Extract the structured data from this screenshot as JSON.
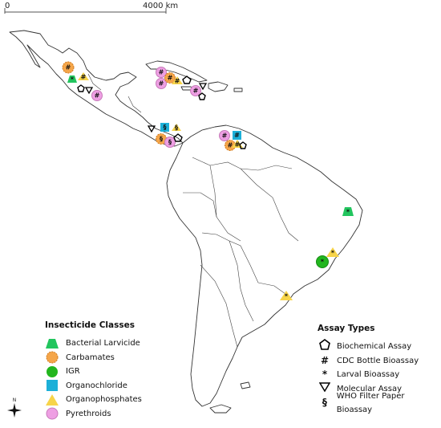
{
  "scale_bar": {
    "start_label": "0",
    "end_label": "4000 km"
  },
  "north_arrow": {
    "label": "N",
    "icon": "compass-star-icon"
  },
  "legend_classes": {
    "title": "Insecticide Classes",
    "items": [
      {
        "label": "Bacterial Larvicide",
        "shape": "trapezoid",
        "color": "#22c55e"
      },
      {
        "label": "Carbamates",
        "shape": "octagon",
        "color": "#f5a64a"
      },
      {
        "label": "IGR",
        "shape": "circle",
        "color": "#22b61e"
      },
      {
        "label": "Organochloride",
        "shape": "square",
        "color": "#1cb0d8"
      },
      {
        "label": "Organophosphates",
        "shape": "triangle",
        "color": "#f7d44a"
      },
      {
        "label": "Pyrethroids",
        "shape": "flower",
        "color": "#ee9fe3"
      }
    ]
  },
  "legend_assays": {
    "title": "Assay Types",
    "items": [
      {
        "label": "Biochemical Assay",
        "icon": "pentagon-icon",
        "glyph": ""
      },
      {
        "label": "CDC Bottle Bioassay",
        "icon": "hash-icon",
        "glyph": "#"
      },
      {
        "label": "Larval Bioassay",
        "icon": "asterisk-icon",
        "glyph": "*"
      },
      {
        "label": "Molecular Assay",
        "icon": "down-triangle-icon",
        "glyph": ""
      },
      {
        "label": "WHO Filter Paper Bioassay",
        "icon": "section-icon",
        "glyph": "§"
      }
    ]
  }
}
